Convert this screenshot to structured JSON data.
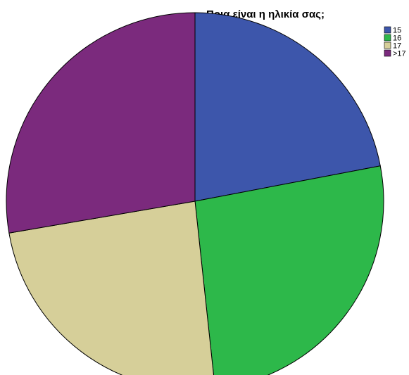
{
  "chart_data": {
    "type": "pie",
    "title": "Ποια είναι η ηλικία σας;",
    "categories": [
      "15",
      "16",
      "17",
      ">17"
    ],
    "values": [
      22.0,
      26.3,
      24.0,
      27.7
    ],
    "colors": [
      "#3d56ab",
      "#2db84a",
      "#d6cf99",
      "#7b2a7d"
    ],
    "legend_position": "top-right"
  }
}
